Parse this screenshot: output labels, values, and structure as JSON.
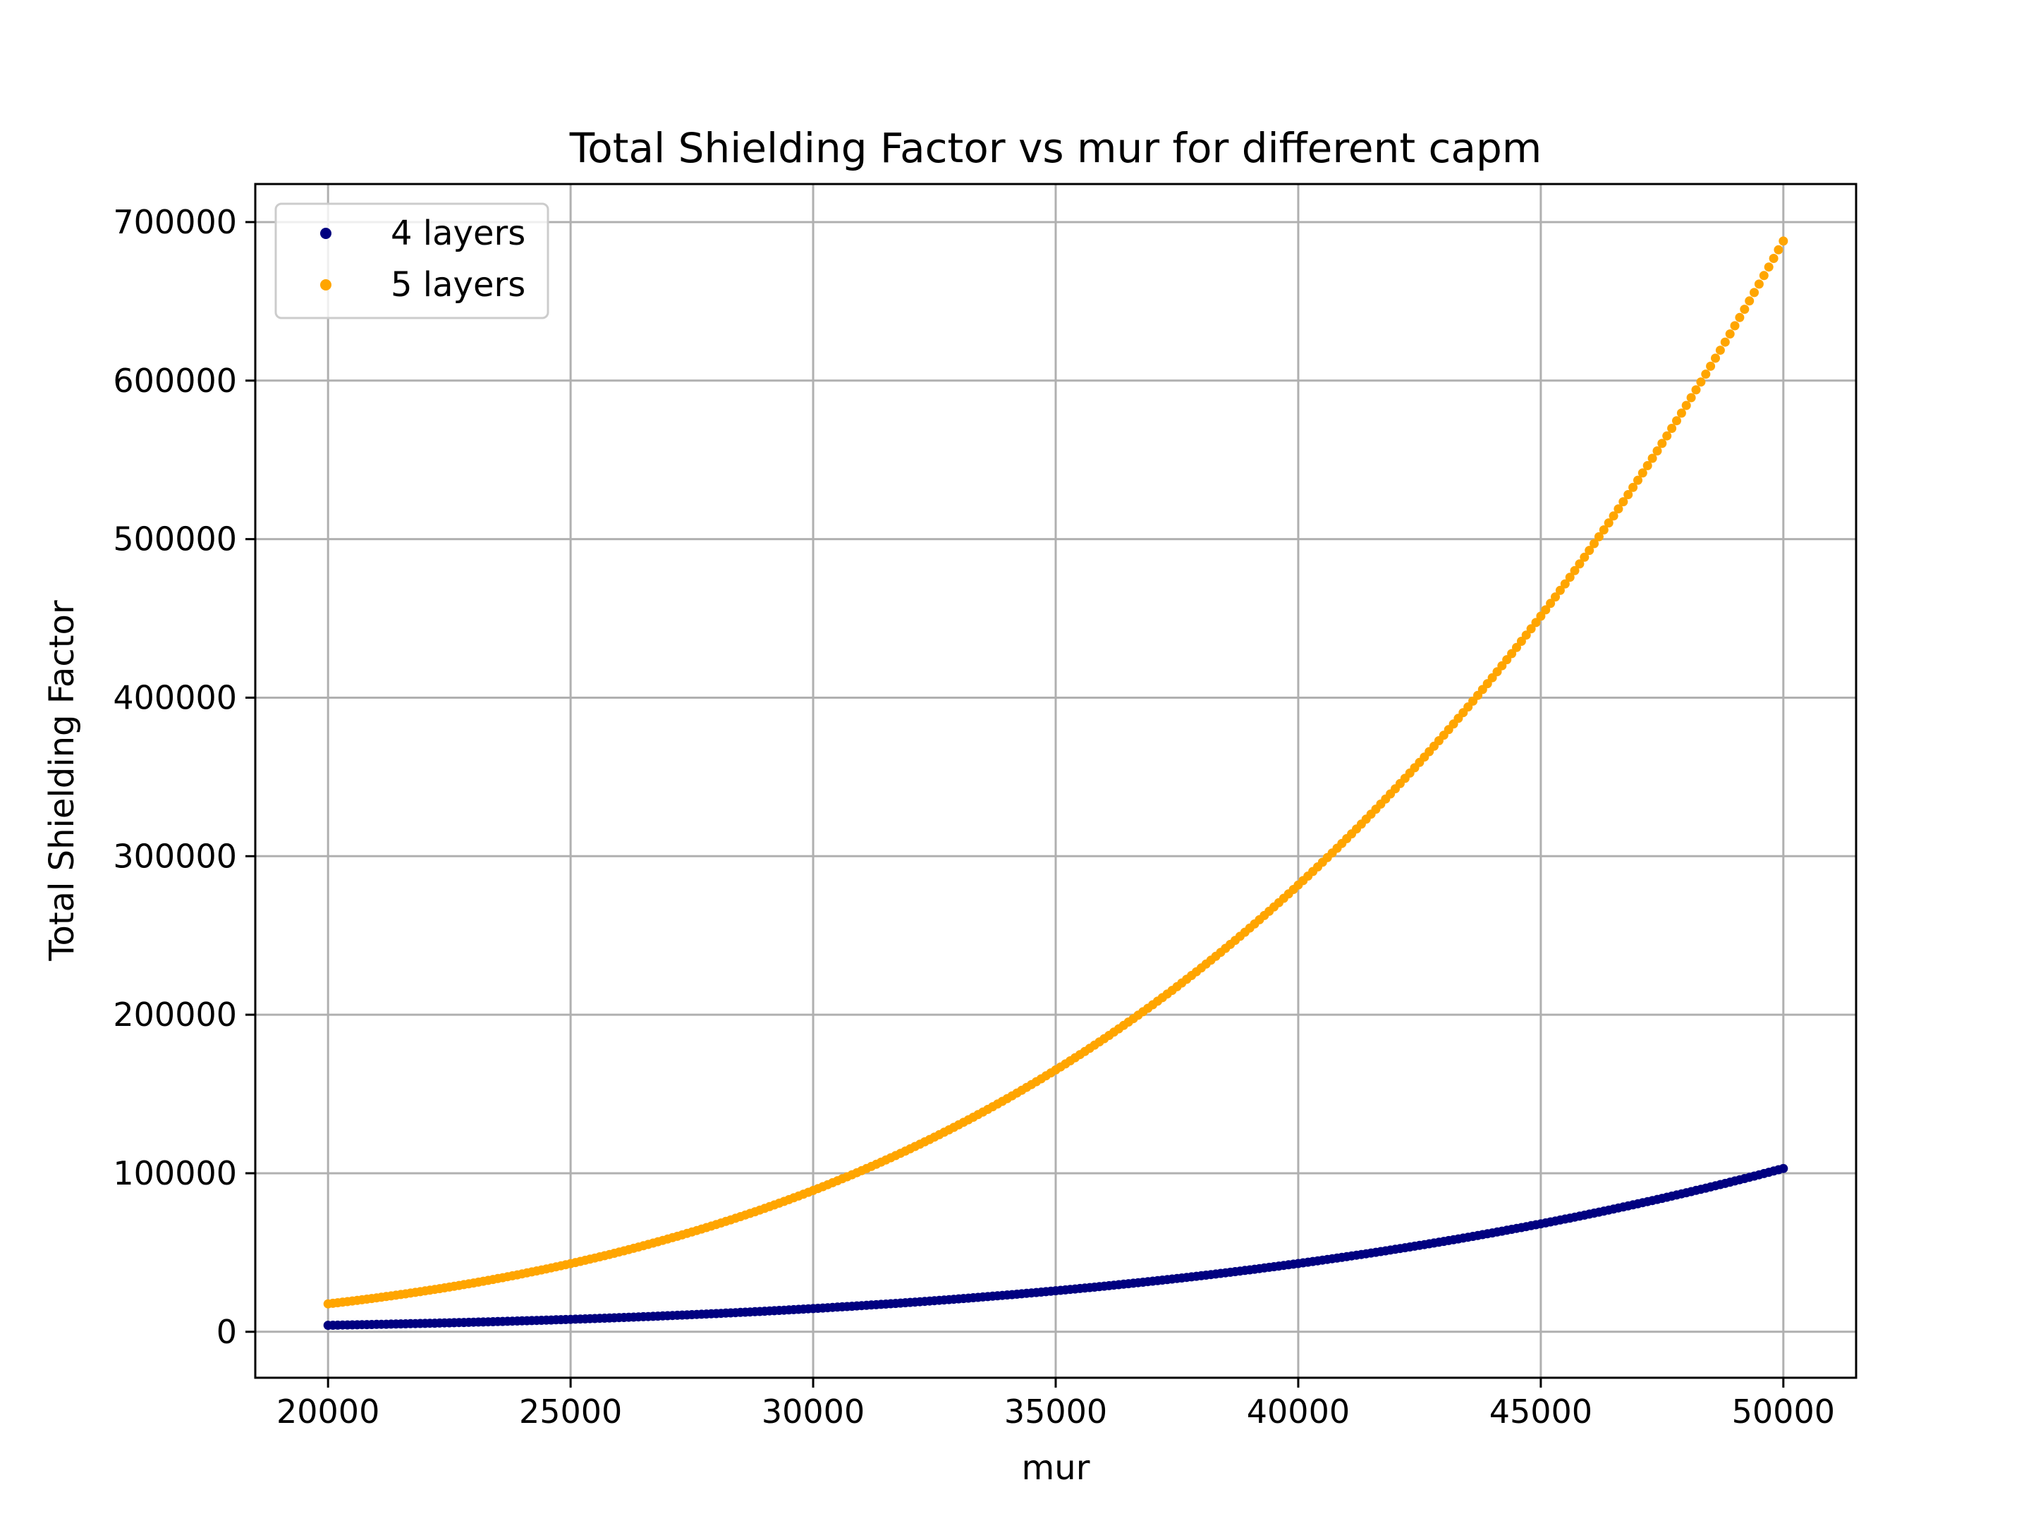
{
  "chart_data": {
    "type": "scatter",
    "title": "Total Shielding Factor vs mur for different capm",
    "xlabel": "mur",
    "ylabel": "Total Shielding Factor",
    "xlim": [
      18500,
      51500
    ],
    "ylim": [
      -29000,
      724000
    ],
    "xticks": [
      20000,
      25000,
      30000,
      35000,
      40000,
      45000,
      50000
    ],
    "yticks": [
      0,
      100000,
      200000,
      300000,
      400000,
      500000,
      600000,
      700000
    ],
    "grid": true,
    "legend_position": "top-left",
    "x_range": [
      20000,
      50000
    ],
    "points_per_series": 301,
    "series": [
      {
        "name": "4 layers",
        "color": "#000080",
        "y_start": 4096,
        "y_end": 103000,
        "growth": "mur^4"
      },
      {
        "name": "5 layers",
        "color": "#FFA500",
        "y_start": 17600,
        "y_end": 688000,
        "growth": "mur^4"
      }
    ]
  }
}
